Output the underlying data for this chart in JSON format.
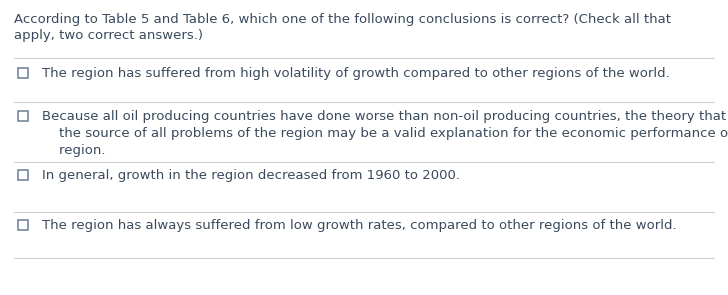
{
  "background_color": "#ffffff",
  "border_color": "#d0d0d0",
  "text_color": "#3a4a5c",
  "question_line1": "According to Table 5 and Table 6, which one of the following conclusions is correct? (Check all that",
  "question_line2": "apply, two correct answers.)",
  "options": [
    "The region has suffered from high volatility of growth compared to other regions of the world.",
    "Because all oil producing countries have done worse than non-oil producing countries, the theory that oil is\n    the source of all problems of the region may be a valid explanation for the economic performance of the\n    region.",
    "In general, growth in the region decreased from 1960 to 2000.",
    "The region has always suffered from low growth rates, compared to other regions of the world."
  ],
  "fig_width": 7.28,
  "fig_height": 2.95,
  "dpi": 100
}
